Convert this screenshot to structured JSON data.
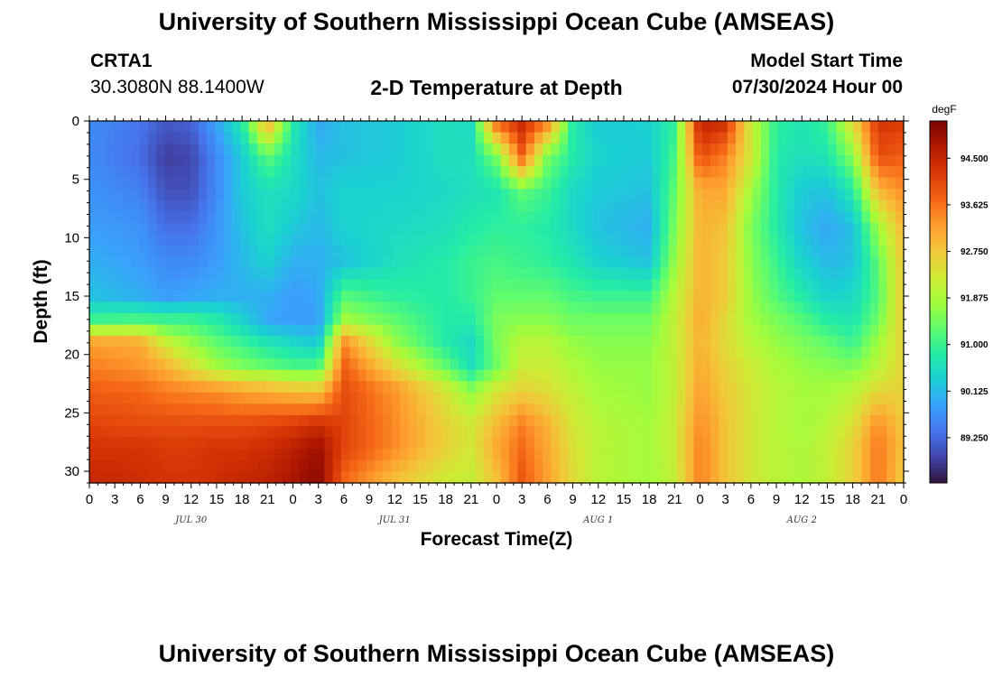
{
  "header": {
    "title": "University of Southern Mississippi Ocean Cube (AMSEAS)",
    "station": "CRTA1",
    "coordinates": "30.3080N  88.1400W",
    "model_start_label": "Model Start Time",
    "model_start_value": "07/30/2024 Hour 00"
  },
  "footer": {
    "title": "University of Southern Mississippi Ocean Cube (AMSEAS)"
  },
  "chart_data": {
    "type": "heatmap",
    "title": "2-D Temperature at Depth",
    "xlabel": "Forecast Time(Z)",
    "ylabel": "Depth (ft)",
    "x_hours_range": [
      0,
      96
    ],
    "y_depth_range_ft": [
      0,
      31
    ],
    "x_tick_hours": [
      0,
      3,
      6,
      9,
      12,
      15,
      18,
      21,
      24,
      27,
      30,
      33,
      36,
      39,
      42,
      45,
      48,
      51,
      54,
      57,
      60,
      63,
      66,
      69,
      72,
      75,
      78,
      81,
      84,
      87,
      90,
      93,
      96
    ],
    "x_tick_labels": [
      "0",
      "3",
      "6",
      "9",
      "12",
      "15",
      "18",
      "21",
      "0",
      "3",
      "6",
      "9",
      "12",
      "15",
      "18",
      "21",
      "0",
      "3",
      "6",
      "9",
      "12",
      "15",
      "18",
      "21",
      "0",
      "3",
      "6",
      "9",
      "12",
      "15",
      "18",
      "21",
      "0"
    ],
    "date_labels": [
      {
        "text": "JUL 30",
        "hour": 12
      },
      {
        "text": "JUL 31",
        "hour": 36
      },
      {
        "text": "AUG 1",
        "hour": 60
      },
      {
        "text": "AUG 2",
        "hour": 84
      }
    ],
    "y_ticks": [
      0,
      5,
      10,
      15,
      20,
      25,
      30
    ],
    "y_tick_labels": [
      "0",
      "5",
      "10",
      "15",
      "20",
      "25",
      "30"
    ],
    "colorbar": {
      "units": "degF",
      "range": [
        88.4,
        95.2
      ],
      "ticks": [
        94.5,
        93.625,
        92.75,
        91.875,
        91.0,
        90.125,
        89.25
      ],
      "tick_labels": [
        "94.500",
        "93.625",
        "92.750",
        "91.875",
        "91.000",
        "90.125",
        "89.250"
      ],
      "colors": [
        "#30123b",
        "#4145ab",
        "#4675ed",
        "#39a2fc",
        "#1bcfd4",
        "#24eca6",
        "#61fc6c",
        "#a4fc3b",
        "#d1e834",
        "#f3c63a",
        "#fe9b2d",
        "#f36315",
        "#d93806",
        "#b11901",
        "#7a0402"
      ]
    },
    "temperature_degF": {
      "times_h": [
        0,
        6,
        9,
        12,
        15,
        18,
        21,
        24,
        27,
        30,
        36,
        42,
        45,
        48,
        51,
        54,
        57,
        60,
        66,
        69,
        72,
        75,
        78,
        81,
        84,
        87,
        90,
        93,
        96
      ],
      "depths_ft": [
        0,
        3,
        6,
        9,
        12,
        15,
        17,
        19,
        21,
        23,
        26,
        28,
        31
      ],
      "values": [
        [
          89.6,
          89.4,
          89.1,
          89.2,
          89.9,
          90.8,
          93.2,
          90.8,
          89.9,
          90.2,
          90.3,
          90.6,
          90.5,
          93.8,
          94.5,
          93.6,
          90.8,
          90.3,
          90.4,
          90.9,
          94.6,
          94.4,
          92.2,
          90.9,
          90.7,
          91.0,
          92.5,
          94.3,
          94.2
        ],
        [
          89.6,
          89.3,
          88.8,
          88.9,
          89.6,
          90.3,
          91.3,
          90.6,
          90.1,
          90.2,
          90.3,
          90.6,
          90.6,
          91.5,
          93.8,
          91.5,
          90.8,
          90.4,
          90.3,
          91.1,
          94.0,
          93.5,
          92.3,
          90.8,
          90.6,
          90.7,
          91.6,
          94.0,
          93.8
        ],
        [
          89.7,
          89.5,
          89.0,
          89.0,
          89.6,
          90.3,
          90.6,
          90.5,
          90.2,
          90.4,
          90.4,
          90.5,
          90.6,
          90.7,
          91.3,
          91.0,
          90.5,
          90.3,
          90.2,
          91.3,
          93.1,
          93.1,
          91.8,
          90.8,
          90.3,
          90.2,
          90.8,
          92.9,
          93.4
        ],
        [
          89.8,
          89.7,
          89.3,
          89.3,
          89.7,
          90.2,
          90.6,
          90.3,
          90.1,
          90.4,
          90.5,
          90.6,
          90.8,
          90.9,
          90.9,
          90.8,
          90.5,
          90.2,
          90.0,
          91.5,
          93.0,
          92.8,
          91.5,
          90.8,
          90.2,
          89.9,
          90.2,
          91.8,
          93.0
        ],
        [
          90.0,
          89.8,
          89.6,
          89.6,
          89.8,
          90.1,
          90.4,
          90.0,
          90.0,
          90.2,
          90.6,
          90.8,
          91.0,
          91.1,
          91.0,
          90.9,
          90.7,
          90.4,
          90.2,
          91.7,
          93.0,
          92.7,
          91.6,
          91.0,
          90.4,
          90.1,
          90.2,
          91.3,
          92.8
        ],
        [
          90.2,
          90.0,
          89.8,
          89.9,
          90.0,
          90.0,
          90.0,
          89.8,
          89.9,
          91.2,
          90.9,
          90.8,
          91.0,
          91.3,
          91.3,
          91.3,
          91.1,
          91.0,
          91.0,
          92.0,
          93.0,
          92.7,
          91.7,
          91.2,
          90.8,
          90.4,
          90.5,
          91.2,
          92.8
        ],
        [
          91.0,
          91.1,
          91.0,
          91.0,
          90.8,
          90.4,
          89.9,
          89.8,
          89.8,
          91.8,
          91.3,
          90.8,
          90.8,
          91.5,
          91.6,
          91.6,
          91.4,
          91.4,
          91.4,
          92.1,
          93.1,
          92.5,
          91.8,
          91.5,
          91.2,
          90.8,
          90.7,
          91.4,
          92.7
        ],
        [
          93.2,
          93.1,
          92.2,
          91.7,
          91.3,
          91.0,
          90.7,
          90.5,
          90.3,
          93.4,
          91.7,
          90.8,
          90.5,
          91.5,
          92.0,
          92.0,
          91.7,
          91.6,
          91.6,
          92.1,
          93.0,
          92.5,
          92.0,
          91.7,
          91.5,
          91.3,
          91.0,
          91.8,
          92.6
        ],
        [
          93.5,
          93.3,
          93.0,
          92.4,
          91.8,
          91.5,
          91.3,
          91.1,
          91.1,
          93.8,
          92.5,
          91.3,
          90.6,
          91.4,
          92.2,
          92.2,
          91.9,
          91.7,
          91.7,
          92.1,
          93.1,
          92.6,
          92.2,
          91.9,
          91.7,
          91.6,
          91.5,
          92.0,
          92.6
        ],
        [
          93.8,
          93.7,
          93.5,
          93.4,
          93.3,
          93.1,
          93.0,
          92.8,
          92.7,
          94.0,
          93.3,
          92.3,
          91.6,
          92.3,
          92.6,
          92.4,
          92.1,
          91.8,
          91.7,
          92.1,
          93.2,
          92.7,
          92.3,
          92.0,
          91.8,
          91.8,
          92.0,
          92.5,
          92.6
        ],
        [
          94.1,
          94.0,
          94.0,
          94.0,
          94.0,
          94.0,
          94.1,
          94.2,
          94.4,
          94.1,
          93.4,
          92.6,
          92.3,
          92.9,
          93.5,
          93.0,
          92.3,
          92.0,
          91.8,
          92.2,
          93.4,
          92.8,
          92.3,
          92.0,
          91.8,
          92.0,
          92.4,
          93.4,
          92.7
        ],
        [
          94.3,
          94.3,
          94.2,
          94.2,
          94.3,
          94.3,
          94.4,
          94.6,
          94.9,
          94.1,
          93.4,
          92.6,
          92.3,
          93.1,
          93.7,
          93.1,
          92.4,
          92.0,
          91.8,
          92.2,
          93.5,
          92.8,
          92.3,
          92.0,
          91.9,
          92.1,
          92.6,
          93.6,
          92.8
        ],
        [
          94.5,
          94.4,
          94.3,
          94.3,
          94.4,
          94.5,
          94.6,
          94.8,
          95.1,
          93.7,
          92.8,
          92.2,
          92.1,
          92.8,
          93.9,
          93.2,
          92.5,
          92.0,
          91.8,
          92.1,
          93.5,
          92.8,
          92.3,
          92.0,
          91.9,
          92.1,
          92.6,
          93.6,
          92.6
        ]
      ]
    }
  }
}
